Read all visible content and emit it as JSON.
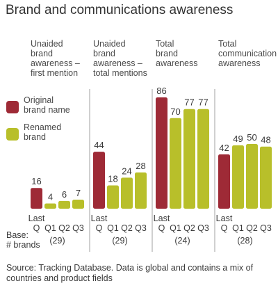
{
  "title": "Brand and communications awareness",
  "colors": {
    "original": "#9e2a36",
    "renamed": "#b8bf2a",
    "divider": "#b0b0b0"
  },
  "legend": [
    {
      "key": "original",
      "label": "Original\nbrand name"
    },
    {
      "key": "renamed",
      "label": "Renamed\nbrand"
    }
  ],
  "base_label": "Base:\n# brands",
  "source": "Source: Tracking Database. Data is global and contains a mix of countries and product fields",
  "chart_data": {
    "type": "bar",
    "categories": [
      "Last Q",
      "Q1",
      "Q2",
      "Q3"
    ],
    "ylim": [
      0,
      100
    ],
    "groups": [
      {
        "label": "Unaided\nbrand\nawareness –\nfirst mention",
        "values": [
          16,
          4,
          6,
          7
        ],
        "base": "(29)"
      },
      {
        "label": "Unaided\nbrand\nawareness –\ntotal mentions",
        "values": [
          44,
          18,
          24,
          28
        ],
        "base": "(29)"
      },
      {
        "label": "Total\nbrand\nawareness",
        "values": [
          86,
          70,
          77,
          77
        ],
        "base": "(24)"
      },
      {
        "label": "Total\ncommunication\nawareness",
        "values": [
          42,
          49,
          50,
          48
        ],
        "base": "(28)"
      }
    ]
  }
}
